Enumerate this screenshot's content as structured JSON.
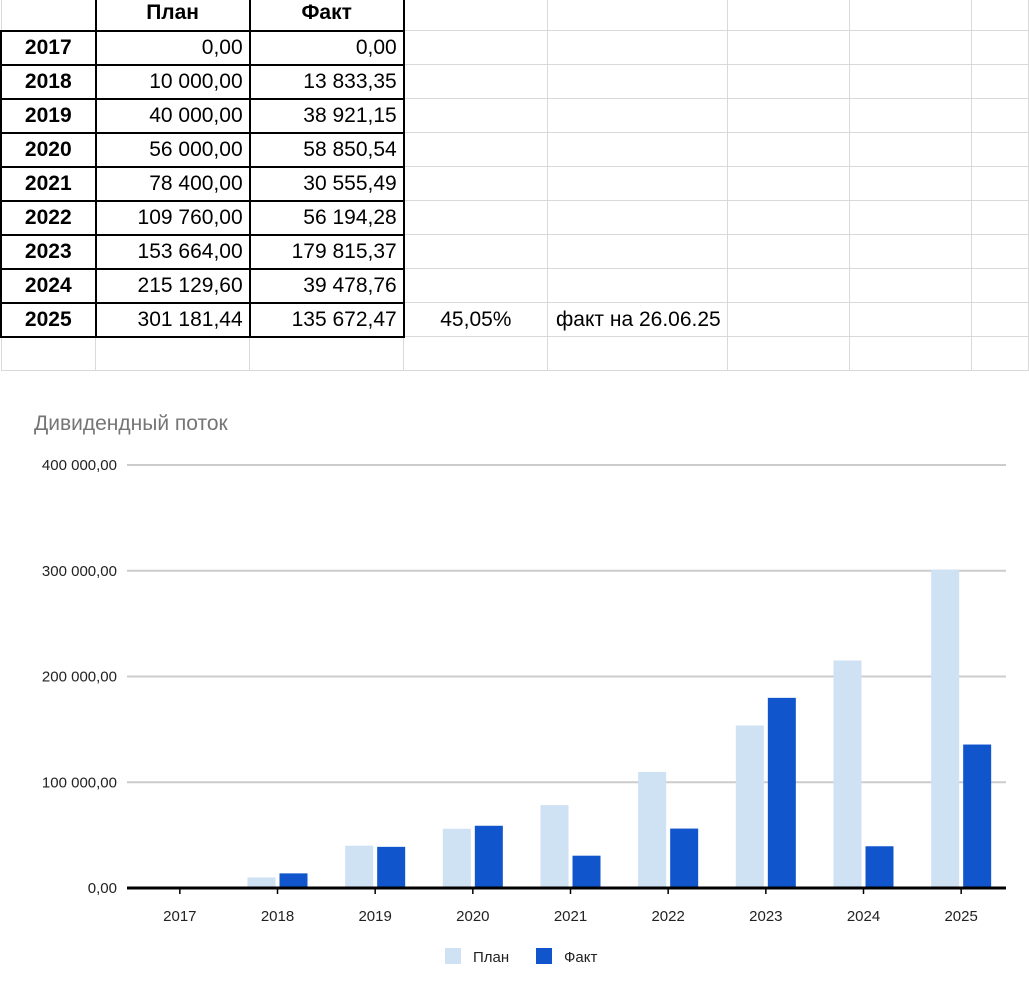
{
  "sheet": {
    "headers": [
      "План",
      "Факт"
    ],
    "rows": [
      {
        "year": "2017",
        "plan": "0,00",
        "fact": "0,00",
        "extra1": "",
        "extra2": ""
      },
      {
        "year": "2018",
        "plan": "10 000,00",
        "fact": "13 833,35",
        "extra1": "",
        "extra2": ""
      },
      {
        "year": "2019",
        "plan": "40 000,00",
        "fact": "38 921,15",
        "extra1": "",
        "extra2": ""
      },
      {
        "year": "2020",
        "plan": "56 000,00",
        "fact": "58 850,54",
        "extra1": "",
        "extra2": ""
      },
      {
        "year": "2021",
        "plan": "78 400,00",
        "fact": "30 555,49",
        "extra1": "",
        "extra2": ""
      },
      {
        "year": "2022",
        "plan": "109 760,00",
        "fact": "56 194,28",
        "extra1": "",
        "extra2": ""
      },
      {
        "year": "2023",
        "plan": "153 664,00",
        "fact": "179 815,37",
        "extra1": "",
        "extra2": ""
      },
      {
        "year": "2024",
        "plan": "215 129,60",
        "fact": "39 478,76",
        "extra1": "",
        "extra2": ""
      },
      {
        "year": "2025",
        "plan": "301 181,44",
        "fact": "135 672,47",
        "extra1": "45,05%",
        "extra2": "факт на 26.06.25"
      }
    ]
  },
  "chart_data": {
    "type": "bar",
    "title": "Дивидендный поток",
    "categories": [
      "2017",
      "2018",
      "2019",
      "2020",
      "2021",
      "2022",
      "2023",
      "2024",
      "2025"
    ],
    "series": [
      {
        "name": "План",
        "color": "#cfe2f3",
        "values": [
          0,
          10000,
          40000,
          56000,
          78400,
          109760,
          153664,
          215129.6,
          301181.44
        ]
      },
      {
        "name": "Факт",
        "color": "#1155cc",
        "values": [
          0,
          13833.35,
          38921.15,
          58850.54,
          30555.49,
          56194.28,
          179815.37,
          39478.76,
          135672.47
        ]
      }
    ],
    "ylim": [
      0,
      400000
    ],
    "yticks": [
      0,
      100000,
      200000,
      300000,
      400000
    ],
    "ytick_labels": [
      "0,00",
      "100 000,00",
      "200 000,00",
      "300 000,00",
      "400 000,00"
    ],
    "xlabel": "",
    "ylabel": "",
    "grid": true,
    "legend": "bottom"
  }
}
